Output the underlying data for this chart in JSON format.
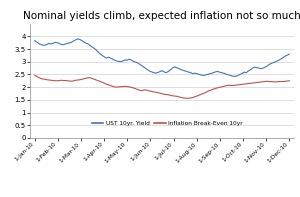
{
  "title": "Nominal yields climb, expected inflation not so much",
  "title_fontsize": 7.5,
  "xlabels": [
    "1-Jan-10",
    "1-Feb-10",
    "1-Mar-10",
    "1-Apr-10",
    "1-May-10",
    "1-Jun-10",
    "1-Jul-10",
    "1-Aug-10",
    "1-Sep-10",
    "1-Oct-10",
    "1-Nov-10",
    "1-Dec-10"
  ],
  "ylim": [
    0,
    4.5
  ],
  "yticks": [
    0,
    0.5,
    1.0,
    1.5,
    2.0,
    2.5,
    3.0,
    3.5,
    4.0
  ],
  "ytick_labels": [
    "0",
    "0.5",
    "1",
    "1.5",
    "2",
    "2.5",
    "3",
    "3.5",
    "4"
  ],
  "legend_labels": [
    "UST 10yr. Yield",
    "Inflation Break-Even 10yr"
  ],
  "ust_color": "#4472C4",
  "bre_color": "#C0504D",
  "background_color": "#FFFFFF",
  "plot_bg_color": "#FFFFFF",
  "grid_color": "#D9D9D9",
  "ust_data": [
    3.83,
    3.78,
    3.72,
    3.68,
    3.65,
    3.65,
    3.68,
    3.72,
    3.7,
    3.73,
    3.76,
    3.75,
    3.72,
    3.68,
    3.67,
    3.7,
    3.72,
    3.74,
    3.77,
    3.82,
    3.86,
    3.9,
    3.88,
    3.83,
    3.78,
    3.73,
    3.7,
    3.64,
    3.58,
    3.53,
    3.46,
    3.38,
    3.3,
    3.24,
    3.19,
    3.14,
    3.18,
    3.14,
    3.1,
    3.06,
    3.03,
    3.01,
    3.0,
    3.03,
    3.07,
    3.06,
    3.1,
    3.07,
    3.02,
    2.99,
    2.96,
    2.91,
    2.85,
    2.8,
    2.74,
    2.68,
    2.63,
    2.6,
    2.57,
    2.55,
    2.58,
    2.61,
    2.65,
    2.6,
    2.57,
    2.61,
    2.68,
    2.74,
    2.8,
    2.77,
    2.74,
    2.7,
    2.67,
    2.64,
    2.62,
    2.59,
    2.57,
    2.53,
    2.55,
    2.53,
    2.5,
    2.48,
    2.46,
    2.47,
    2.5,
    2.52,
    2.54,
    2.57,
    2.6,
    2.62,
    2.59,
    2.57,
    2.55,
    2.52,
    2.49,
    2.47,
    2.44,
    2.42,
    2.43,
    2.46,
    2.5,
    2.54,
    2.59,
    2.57,
    2.63,
    2.68,
    2.74,
    2.79,
    2.77,
    2.75,
    2.73,
    2.74,
    2.78,
    2.82,
    2.88,
    2.93,
    2.96,
    2.99,
    3.02,
    3.07,
    3.11,
    3.17,
    3.22,
    3.26,
    3.3
  ],
  "bre_data": [
    2.47,
    2.42,
    2.38,
    2.34,
    2.32,
    2.31,
    2.29,
    2.28,
    2.27,
    2.26,
    2.25,
    2.25,
    2.26,
    2.27,
    2.26,
    2.26,
    2.25,
    2.24,
    2.23,
    2.25,
    2.27,
    2.28,
    2.29,
    2.31,
    2.33,
    2.35,
    2.37,
    2.37,
    2.34,
    2.31,
    2.28,
    2.25,
    2.22,
    2.19,
    2.15,
    2.11,
    2.09,
    2.06,
    2.03,
    2.01,
    2.0,
    2.01,
    2.02,
    2.02,
    2.03,
    2.02,
    2.01,
    1.99,
    1.97,
    1.94,
    1.91,
    1.88,
    1.86,
    1.88,
    1.89,
    1.87,
    1.85,
    1.83,
    1.81,
    1.8,
    1.78,
    1.76,
    1.74,
    1.72,
    1.71,
    1.7,
    1.68,
    1.66,
    1.65,
    1.64,
    1.62,
    1.6,
    1.58,
    1.57,
    1.56,
    1.56,
    1.57,
    1.59,
    1.62,
    1.65,
    1.68,
    1.72,
    1.75,
    1.78,
    1.82,
    1.86,
    1.89,
    1.92,
    1.95,
    1.97,
    1.99,
    2.01,
    2.03,
    2.05,
    2.07,
    2.07,
    2.06,
    2.07,
    2.08,
    2.09,
    2.1,
    2.11,
    2.12,
    2.13,
    2.14,
    2.15,
    2.16,
    2.17,
    2.18,
    2.19,
    2.2,
    2.21,
    2.22,
    2.23,
    2.22,
    2.22,
    2.21,
    2.21,
    2.21,
    2.22,
    2.22,
    2.22,
    2.23,
    2.24,
    2.25
  ]
}
